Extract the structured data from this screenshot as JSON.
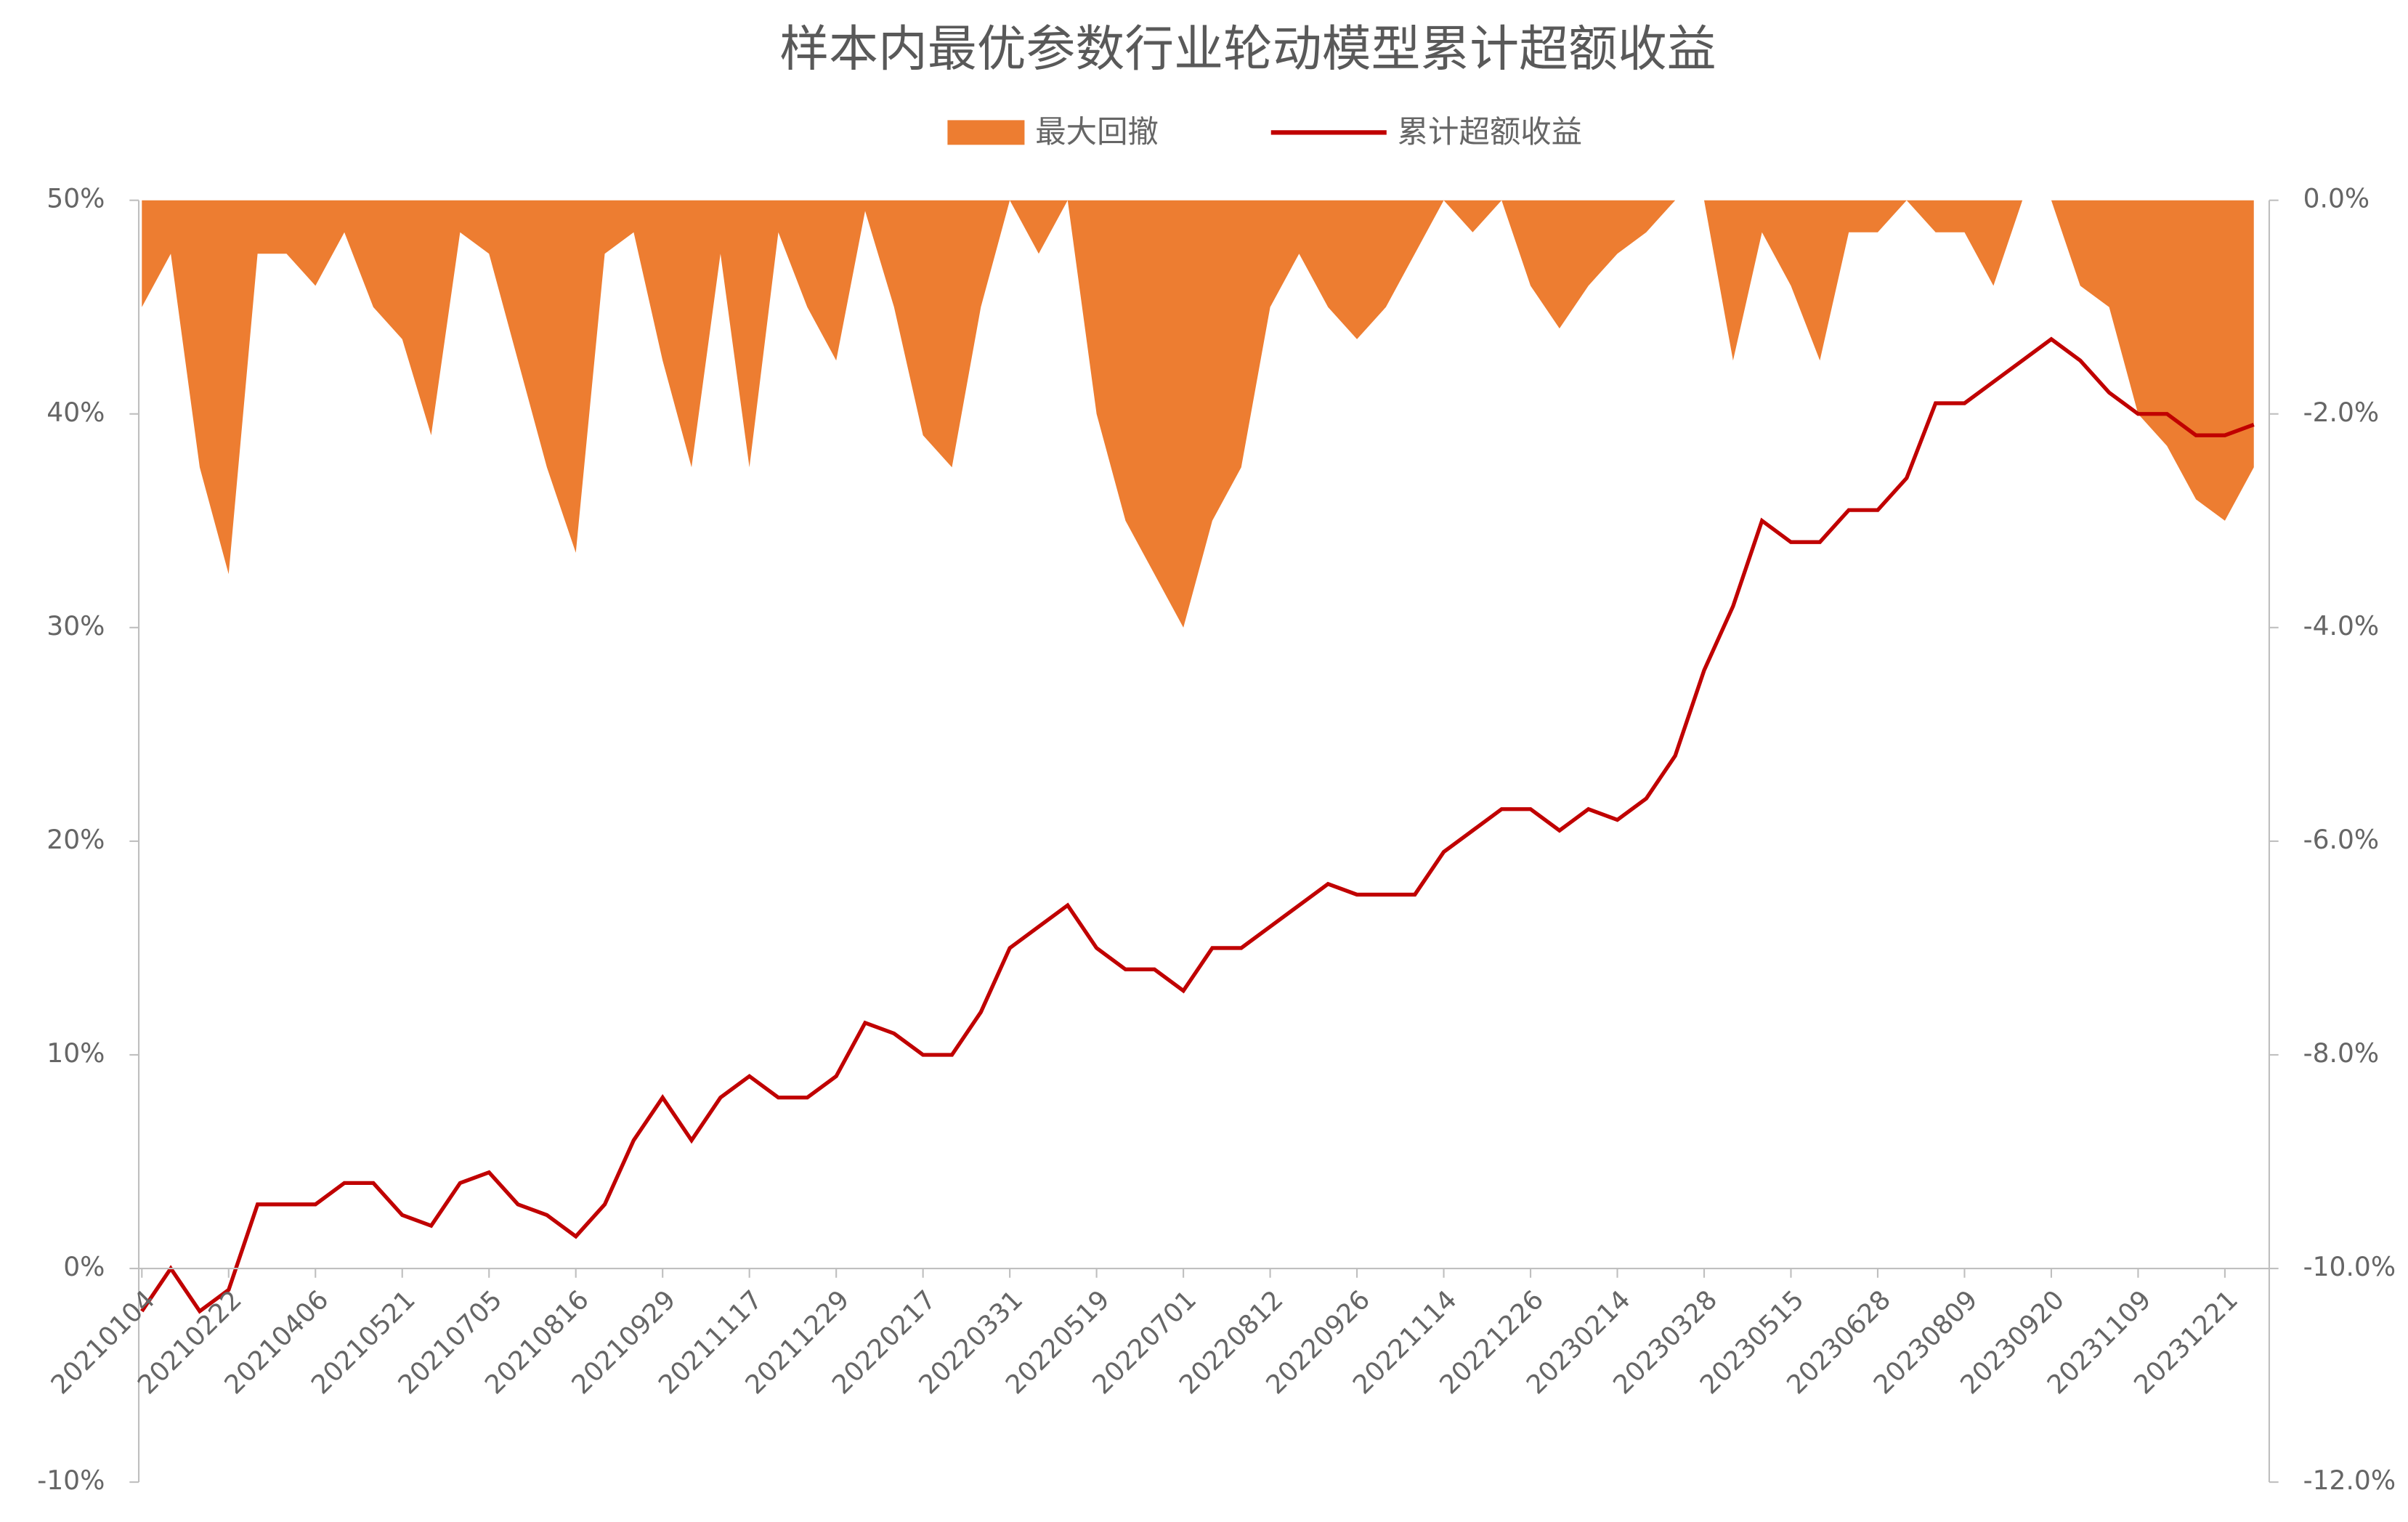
{
  "chart_data": {
    "type": "bar-area-line",
    "title": "样本内最优参数行业轮动模型累计超额收益",
    "categories": [
      "20210104",
      null,
      null,
      "20210222",
      null,
      null,
      "20210406",
      null,
      null,
      "20210521",
      null,
      null,
      "20210705",
      null,
      null,
      "20210816",
      null,
      null,
      "20210929",
      null,
      null,
      "20211117",
      null,
      null,
      "20211229",
      null,
      null,
      "20220217",
      null,
      null,
      "20220331",
      null,
      null,
      "20220519",
      null,
      null,
      "20220701",
      null,
      null,
      "20220812",
      null,
      null,
      "20220926",
      null,
      null,
      "20221114",
      null,
      null,
      "20221226",
      null,
      null,
      "20230214",
      null,
      null,
      "20230328",
      null,
      null,
      "20230515",
      null,
      null,
      "20230628",
      null,
      null,
      "20230809",
      null,
      null,
      "20230920",
      null,
      null,
      "20231109",
      null,
      null,
      "20231221",
      null
    ],
    "series": [
      {
        "name": "最大回撤",
        "color": "#ED7D31",
        "axis": "y2",
        "kind": "area",
        "values": [
          -1,
          -0.5,
          -2.5,
          -3.5,
          -0.5,
          -0.5,
          -0.8,
          -0.3,
          -1,
          -1.3,
          -2.2,
          -0.3,
          -0.5,
          -1.5,
          -2.5,
          -3.3,
          -0.5,
          -0.3,
          -1.5,
          -2.5,
          -0.5,
          -2.5,
          -0.3,
          -1,
          -1.5,
          -0.1,
          -1,
          -2.2,
          -2.5,
          -1,
          0,
          -0.5,
          0,
          -2,
          -3,
          -3.5,
          -4,
          -3,
          -2.5,
          -1,
          -0.5,
          -1,
          -1.3,
          -1,
          -0.5,
          0,
          -0.3,
          0,
          -0.8,
          -1.2,
          -0.8,
          -0.5,
          -0.3,
          0,
          0,
          -1.5,
          -0.3,
          -0.8,
          -1.5,
          -0.3,
          -0.3,
          0,
          -0.3,
          -0.3,
          -0.8,
          0,
          0,
          -0.8,
          -1,
          -2,
          -2.3,
          -2.8,
          -3,
          -2.5
        ]
      },
      {
        "name": "累计超额收益",
        "color": "#C00000",
        "kind": "line",
        "values": [
          -2,
          0,
          -2,
          -1,
          3,
          3,
          3,
          4,
          4,
          2.5,
          2,
          4,
          4.5,
          3,
          2.5,
          1.5,
          3,
          6,
          8,
          6,
          8,
          9,
          8,
          8,
          9,
          11.5,
          11,
          10,
          10,
          12,
          15,
          16,
          17,
          15,
          14,
          14,
          13,
          15,
          15,
          16,
          17,
          18,
          17.5,
          17.5,
          17.5,
          19.5,
          20.5,
          21.5,
          21.5,
          20.5,
          21.5,
          21,
          22,
          24,
          28,
          31,
          35,
          34,
          34,
          35.5,
          35.5,
          37,
          40.5,
          40.5,
          41.5,
          42.5,
          43.5,
          42.5,
          41,
          40,
          40,
          39,
          39,
          39.5
        ]
      }
    ],
    "ylim": [
      -10,
      50
    ],
    "yticks": [
      {
        "value": -10,
        "label": "-10%"
      },
      {
        "value": 0,
        "label": "0%"
      },
      {
        "value": 10,
        "label": "10%"
      },
      {
        "value": 20,
        "label": "20%"
      },
      {
        "value": 30,
        "label": "30%"
      },
      {
        "value": 40,
        "label": "40%"
      },
      {
        "value": 50,
        "label": "50%"
      }
    ],
    "y2lim": [
      -12,
      0
    ],
    "y2ticks": [
      {
        "value": -12,
        "label": "-12.0%"
      },
      {
        "value": -10,
        "label": "-10.0%"
      },
      {
        "value": -8,
        "label": "-8.0%"
      },
      {
        "value": -6,
        "label": "-6.0%"
      },
      {
        "value": -4,
        "label": "-4.0%"
      },
      {
        "value": -2,
        "label": "-2.0%"
      },
      {
        "value": 0,
        "label": "0.0%"
      }
    ],
    "legend": "top"
  }
}
